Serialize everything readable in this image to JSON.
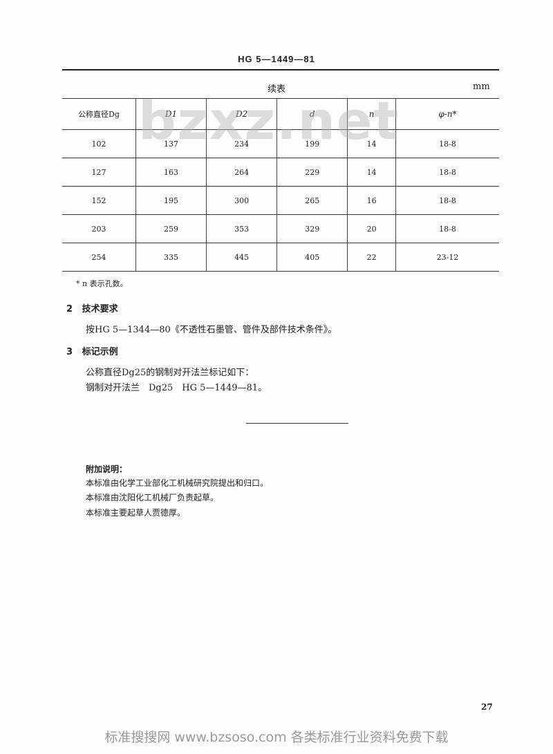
{
  "header": {
    "standard_no": "HG 5—1449—81"
  },
  "table": {
    "caption": "续表",
    "unit": "mm",
    "columns": [
      "公称直径Dg",
      "D1",
      "D2",
      "d",
      "n",
      "φ-n*"
    ],
    "rows": [
      [
        "102",
        "137",
        "234",
        "199",
        "14",
        "18-8"
      ],
      [
        "127",
        "163",
        "264",
        "229",
        "14",
        "18-8"
      ],
      [
        "152",
        "195",
        "300",
        "265",
        "16",
        "18-8"
      ],
      [
        "203",
        "259",
        "353",
        "329",
        "20",
        "18-8"
      ],
      [
        "254",
        "335",
        "445",
        "405",
        "22",
        "23-12"
      ]
    ],
    "footnote": "* n 表示孔数。"
  },
  "sections": [
    {
      "number": "2",
      "title": "技术要求",
      "lines": [
        "按HG 5—1344—80《不透性石墨管、管件及部件技术条件》。"
      ]
    },
    {
      "number": "3",
      "title": "标记示例",
      "lines": [
        "公称直径Dg25的钢制对开法兰标记如下：",
        "钢制对开法兰　Dg25　HG 5—1449—81。"
      ]
    }
  ],
  "notes": {
    "title": "附加说明：",
    "lines": [
      "本标准由化学工业部化工机械研究院提出和归口。",
      "本标准由沈阳化工机械厂负责起草。",
      "本标准主要起草人贾德厚。"
    ]
  },
  "page_number": "27",
  "watermark": "bzxz.net",
  "footer": "标准搜搜网 www.bzsoso.com 各类标准行业资料免费下载"
}
